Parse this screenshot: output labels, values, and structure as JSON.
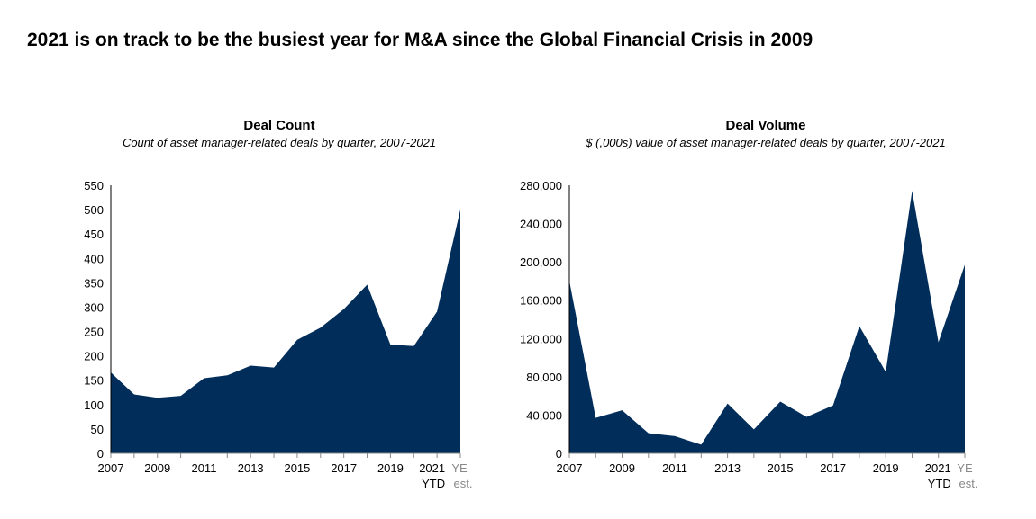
{
  "title": "2021 is on track to be the busiest year for M&A since the Global Financial Crisis in 2009",
  "chart_data": [
    {
      "type": "area",
      "title": "Deal Count",
      "subtitle": "Count of asset manager-related deals by quarter, 2007-2021",
      "color": "#002d5a",
      "categories": [
        "2007",
        "2008",
        "2009",
        "2010",
        "2011",
        "2012",
        "2013",
        "2014",
        "2015",
        "2016",
        "2017",
        "2018",
        "2019",
        "2020",
        "2021 YTD",
        "YE est."
      ],
      "tick_labels": [
        "2007",
        "",
        "2009",
        "",
        "2011",
        "",
        "2013",
        "",
        "2015",
        "",
        "2017",
        "",
        "2019",
        "",
        "2021",
        "YE"
      ],
      "tick_labels_2": [
        "",
        "",
        "",
        "",
        "",
        "",
        "",
        "",
        "",
        "",
        "",
        "",
        "",
        "",
        "YTD",
        "est."
      ],
      "values": [
        166,
        121,
        114,
        118,
        154,
        160,
        180,
        176,
        233,
        258,
        296,
        346,
        223,
        220,
        291,
        500
      ],
      "ylim": [
        0,
        550
      ],
      "yticks": [
        0,
        50,
        100,
        150,
        200,
        250,
        300,
        350,
        400,
        450,
        500,
        550
      ],
      "ytick_labels": [
        "0",
        "50",
        "100",
        "150",
        "200",
        "250",
        "300",
        "350",
        "400",
        "450",
        "500",
        "550"
      ],
      "grid": false
    },
    {
      "type": "area",
      "title": "Deal Volume",
      "subtitle": "$ (,000s) value of asset manager-related deals by quarter, 2007-2021",
      "color": "#002d5a",
      "categories": [
        "2007",
        "2008",
        "2009",
        "2010",
        "2011",
        "2012",
        "2013",
        "2014",
        "2015",
        "2016",
        "2017",
        "2018",
        "2019",
        "2020",
        "2021 YTD",
        "YE est."
      ],
      "tick_labels": [
        "2007",
        "",
        "2009",
        "",
        "2011",
        "",
        "2013",
        "",
        "2015",
        "",
        "2017",
        "",
        "2019",
        "",
        "2021",
        "YE"
      ],
      "tick_labels_2": [
        "",
        "",
        "",
        "",
        "",
        "",
        "",
        "",
        "",
        "",
        "",
        "",
        "",
        "",
        "YTD",
        "est."
      ],
      "values": [
        180000,
        37000,
        45000,
        21000,
        18000,
        9000,
        52000,
        25000,
        54000,
        38000,
        50000,
        133000,
        85000,
        274000,
        116000,
        197000
      ],
      "ylim": [
        0,
        280000
      ],
      "yticks": [
        0,
        40000,
        80000,
        120000,
        160000,
        200000,
        240000,
        280000
      ],
      "ytick_labels": [
        "0",
        "40,000",
        "80,000",
        "120,000",
        "160,000",
        "200,000",
        "240,000",
        "280,000"
      ],
      "grid": false
    }
  ]
}
